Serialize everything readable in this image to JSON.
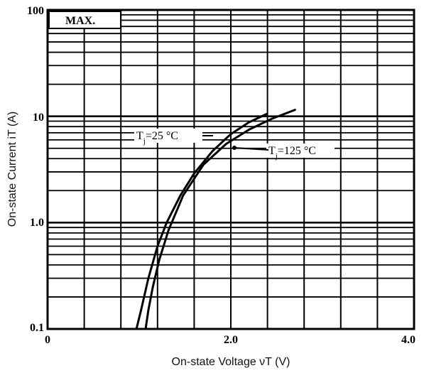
{
  "chart_data": {
    "type": "line",
    "xlabel": "On-state Voltage νT (V)",
    "ylabel": "On-state Current iT (A)",
    "xlim": [
      0,
      4.0
    ],
    "ylim": [
      0.1,
      100
    ],
    "y_scale": "log",
    "grid": true,
    "x_tick_labels": [
      "0",
      "2.0",
      "4.0"
    ],
    "y_tick_labels": [
      "0.1",
      "1.0",
      "10",
      "100"
    ],
    "annotations": [
      "MAX."
    ],
    "series": [
      {
        "name": "Tj=25 °C",
        "x": [
          0.97,
          1.02,
          1.1,
          1.2,
          1.3,
          1.45,
          1.6,
          1.8,
          2.0,
          2.2,
          2.39
        ],
        "y": [
          0.1,
          0.15,
          0.3,
          0.6,
          1.0,
          1.8,
          2.9,
          4.7,
          6.8,
          8.8,
          10.5
        ]
      },
      {
        "name": "Tj=125 °C",
        "x": [
          1.07,
          1.1,
          1.15,
          1.22,
          1.32,
          1.48,
          1.7,
          1.95,
          2.2,
          2.45,
          2.7
        ],
        "y": [
          0.1,
          0.15,
          0.25,
          0.45,
          0.85,
          1.8,
          3.5,
          5.5,
          7.5,
          9.5,
          11.5
        ]
      }
    ]
  }
}
